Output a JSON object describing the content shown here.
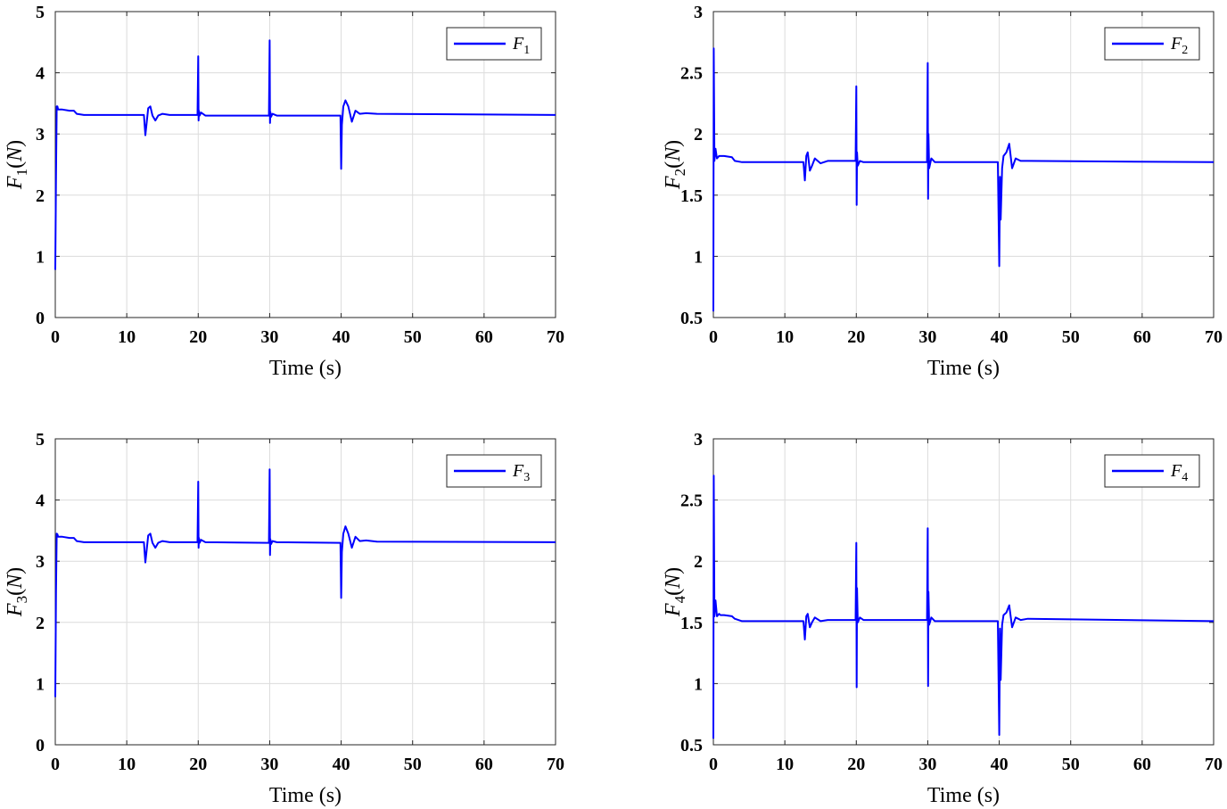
{
  "colors": {
    "series": "#0000ff",
    "grid": "#dcdcdc",
    "axis": "#262626"
  },
  "chart_data": [
    {
      "type": "line",
      "id": "F1",
      "xlabel": "Time (s)",
      "ylabel": {
        "var": "F",
        "sub": "1",
        "unit": "N"
      },
      "legend": {
        "var": "F",
        "sub": "1",
        "placement": "top-right"
      },
      "xlim": [
        0,
        70
      ],
      "ylim": [
        0,
        5
      ],
      "xticks": [
        "0",
        "10",
        "20",
        "30",
        "40",
        "50",
        "60",
        "70"
      ],
      "yticks": [
        "0",
        "1",
        "2",
        "3",
        "4",
        "5"
      ],
      "grid": true,
      "series": [
        {
          "name": "F1",
          "x": [
            0,
            0.1,
            0.2,
            0.3,
            0.4,
            0.6,
            1,
            2,
            2.6,
            3,
            4,
            6,
            10,
            12.4,
            12.6,
            12.8,
            13,
            13.3,
            13.6,
            14,
            14.4,
            15,
            16,
            19.9,
            20,
            20.05,
            20.1,
            20.2,
            20.4,
            21,
            29.9,
            30,
            30.05,
            30.1,
            30.2,
            30.4,
            31,
            39.9,
            40,
            40.1,
            40.3,
            40.6,
            41,
            41.5,
            42,
            42.6,
            43.5,
            45,
            70
          ],
          "values": [
            0.78,
            2.3,
            3.45,
            3.45,
            3.4,
            3.4,
            3.4,
            3.38,
            3.38,
            3.33,
            3.31,
            3.31,
            3.31,
            3.31,
            2.98,
            3.2,
            3.42,
            3.45,
            3.3,
            3.22,
            3.3,
            3.33,
            3.31,
            3.31,
            4.27,
            3.22,
            3.38,
            3.3,
            3.35,
            3.3,
            3.3,
            4.53,
            3.18,
            3.36,
            3.28,
            3.33,
            3.3,
            3.3,
            2.43,
            3.15,
            3.45,
            3.55,
            3.45,
            3.2,
            3.38,
            3.33,
            3.34,
            3.33,
            3.31
          ]
        }
      ]
    },
    {
      "type": "line",
      "id": "F2",
      "xlabel": "Time (s)",
      "ylabel": {
        "var": "F",
        "sub": "2",
        "unit": "N"
      },
      "legend": {
        "var": "F",
        "sub": "2",
        "placement": "top-right"
      },
      "xlim": [
        0,
        70
      ],
      "ylim": [
        0.5,
        3
      ],
      "xticks": [
        "0",
        "10",
        "20",
        "30",
        "40",
        "50",
        "60",
        "70"
      ],
      "yticks": [
        "0.5",
        "1",
        "1.5",
        "2",
        "2.5",
        "3"
      ],
      "grid": true,
      "series": [
        {
          "name": "F2",
          "x": [
            0,
            0.05,
            0.15,
            0.3,
            0.5,
            0.8,
            1,
            1.5,
            2.6,
            3,
            4,
            6,
            10,
            12.6,
            12.8,
            13,
            13.2,
            13.5,
            13.8,
            14.2,
            15,
            16,
            19.9,
            20,
            20.05,
            20.1,
            20.2,
            20.5,
            21,
            29.9,
            30,
            30.05,
            30.1,
            30.2,
            30.5,
            31,
            39.8,
            40,
            40.1,
            40.2,
            40.4,
            40.6,
            41,
            41.4,
            41.8,
            42.3,
            43,
            44,
            70
          ],
          "values": [
            0.55,
            2.7,
            1.78,
            1.88,
            1.8,
            1.82,
            1.82,
            1.82,
            1.81,
            1.78,
            1.77,
            1.77,
            1.77,
            1.77,
            1.62,
            1.82,
            1.85,
            1.7,
            1.74,
            1.8,
            1.76,
            1.78,
            1.78,
            2.39,
            1.42,
            1.85,
            1.74,
            1.78,
            1.77,
            1.77,
            2.58,
            1.47,
            2.0,
            1.72,
            1.8,
            1.77,
            1.77,
            0.92,
            1.65,
            1.3,
            1.72,
            1.82,
            1.85,
            1.92,
            1.72,
            1.8,
            1.78,
            1.78,
            1.77
          ]
        }
      ]
    },
    {
      "type": "line",
      "id": "F3",
      "xlabel": "Time (s)",
      "ylabel": {
        "var": "F",
        "sub": "3",
        "unit": "N"
      },
      "legend": {
        "var": "F",
        "sub": "3",
        "placement": "top-right"
      },
      "xlim": [
        0,
        70
      ],
      "ylim": [
        0,
        5
      ],
      "xticks": [
        "0",
        "10",
        "20",
        "30",
        "40",
        "50",
        "60",
        "70"
      ],
      "yticks": [
        "0",
        "1",
        "2",
        "3",
        "4",
        "5"
      ],
      "grid": true,
      "series": [
        {
          "name": "F3",
          "x": [
            0,
            0.1,
            0.2,
            0.3,
            0.4,
            0.6,
            1,
            2,
            2.6,
            3,
            4,
            6,
            10,
            12.4,
            12.6,
            12.8,
            13,
            13.3,
            13.6,
            14,
            14.4,
            15,
            16,
            19.9,
            20,
            20.05,
            20.1,
            20.2,
            20.4,
            21,
            29.9,
            30,
            30.05,
            30.1,
            30.2,
            30.4,
            31,
            39.9,
            40,
            40.1,
            40.3,
            40.6,
            41,
            41.5,
            42,
            42.6,
            43.5,
            45,
            70
          ],
          "values": [
            0.78,
            2.5,
            3.45,
            3.44,
            3.4,
            3.4,
            3.4,
            3.38,
            3.38,
            3.33,
            3.31,
            3.31,
            3.31,
            3.31,
            2.98,
            3.2,
            3.42,
            3.45,
            3.3,
            3.22,
            3.3,
            3.33,
            3.31,
            3.31,
            4.3,
            3.22,
            3.38,
            3.3,
            3.35,
            3.31,
            3.3,
            4.5,
            3.1,
            3.36,
            3.28,
            3.33,
            3.31,
            3.3,
            2.4,
            3.15,
            3.45,
            3.57,
            3.45,
            3.22,
            3.4,
            3.33,
            3.34,
            3.32,
            3.31
          ]
        }
      ]
    },
    {
      "type": "line",
      "id": "F4",
      "xlabel": "Time (s)",
      "ylabel": {
        "var": "F",
        "sub": "4",
        "unit": "N"
      },
      "legend": {
        "var": "F",
        "sub": "4",
        "placement": "top-right"
      },
      "xlim": [
        0,
        70
      ],
      "ylim": [
        0.5,
        3
      ],
      "xticks": [
        "0",
        "10",
        "20",
        "30",
        "40",
        "50",
        "60",
        "70"
      ],
      "yticks": [
        "0.5",
        "1",
        "1.5",
        "2",
        "2.5",
        "3"
      ],
      "grid": true,
      "series": [
        {
          "name": "F4",
          "x": [
            0,
            0.05,
            0.15,
            0.3,
            0.5,
            0.8,
            1,
            1.5,
            2.6,
            3,
            4,
            6,
            10,
            12.6,
            12.8,
            13,
            13.2,
            13.5,
            13.8,
            14.2,
            15,
            16,
            19.9,
            20,
            20.05,
            20.1,
            20.2,
            20.5,
            21,
            29.9,
            30,
            30.05,
            30.1,
            30.2,
            30.5,
            31,
            39.8,
            40,
            40.1,
            40.2,
            40.4,
            40.6,
            41,
            41.4,
            41.8,
            42.3,
            43,
            44,
            70
          ],
          "values": [
            0.55,
            2.7,
            1.55,
            1.68,
            1.55,
            1.57,
            1.56,
            1.56,
            1.55,
            1.53,
            1.51,
            1.51,
            1.51,
            1.51,
            1.36,
            1.55,
            1.57,
            1.46,
            1.5,
            1.54,
            1.51,
            1.52,
            1.52,
            2.15,
            0.97,
            1.78,
            1.5,
            1.54,
            1.52,
            1.52,
            2.27,
            0.98,
            1.75,
            1.48,
            1.54,
            1.51,
            1.51,
            0.58,
            1.45,
            1.03,
            1.48,
            1.56,
            1.58,
            1.64,
            1.46,
            1.54,
            1.52,
            1.53,
            1.51
          ]
        }
      ]
    }
  ]
}
